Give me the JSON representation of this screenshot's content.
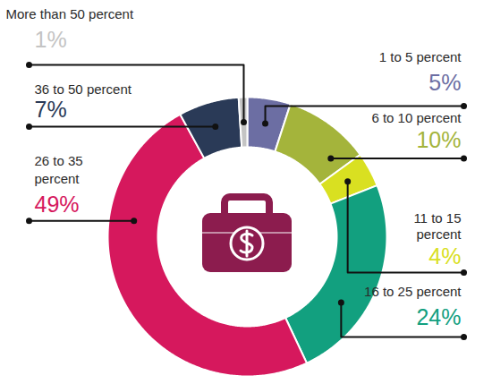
{
  "chart_data": {
    "type": "donut",
    "categories": [
      "1 to 5 percent",
      "6 to 10 percent",
      "11 to 15 percent",
      "16 to 25 percent",
      "26 to 35 percent",
      "36 to 50 percent",
      "More than 50 percent"
    ],
    "values": [
      5,
      10,
      4,
      24,
      49,
      7,
      1
    ],
    "value_labels": [
      "5%",
      "10%",
      "4%",
      "24%",
      "49%",
      "7%",
      "1%"
    ],
    "colors": [
      "#6c6ea3",
      "#a4b43b",
      "#d9e021",
      "#12a07f",
      "#d6185d",
      "#2a3a57",
      "#c4c4c4"
    ],
    "data_labels": true
  }
}
